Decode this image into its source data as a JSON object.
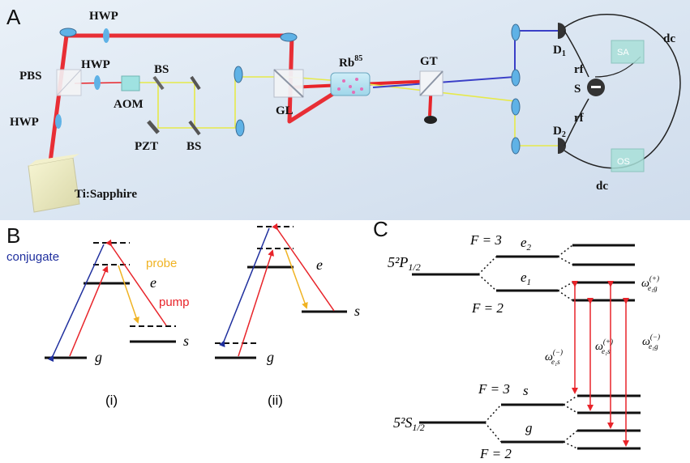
{
  "panel_a": {
    "letter": "A",
    "hwp1": "HWP",
    "hwp2": "HWP",
    "hwp3": "HWP",
    "pbs": "PBS",
    "aom": "AOM",
    "bs1": "BS",
    "bs2": "BS",
    "pzt": "PZT",
    "gl": "GL",
    "rb_main": "Rb",
    "rb_sup": "85",
    "gt": "GT",
    "laser": "Ti:Sapphire",
    "d1_main": "D",
    "d1_sub": "1",
    "d2_main": "D",
    "d2_sub": "2",
    "rf1": "rf",
    "rf2": "rf",
    "dc1": "dc",
    "dc2": "dc",
    "s": "S",
    "sa": "SA",
    "os": "OS"
  },
  "panel_b": {
    "letter": "B",
    "conjugate": "conjugate",
    "probe": "probe",
    "pump": "pump",
    "e1": "e",
    "s1": "s",
    "g1": "g",
    "e2": "e",
    "s2": "s",
    "g2": "g",
    "cap1": "(i)",
    "cap2": "(ii)"
  },
  "panel_c": {
    "letter": "C",
    "p_label": "5²P",
    "p_sub": "1/2",
    "s_label": "5²S",
    "s_sub": "1/2",
    "f3_top": "F = 3",
    "f2_top": "F = 2",
    "f3_bot": "F = 3",
    "f2_bot": "F = 2",
    "e2": "e",
    "e2_sub": "2",
    "e1": "e",
    "e1_sub": "1",
    "s": "s",
    "g": "g",
    "w1": "ω",
    "w1_sub": "e₁s",
    "w1_sup": "(−)",
    "w2": "ω",
    "w2_sub": "e₁s",
    "w2_sup": "(+)",
    "w3": "ω",
    "w3_sub": "e₁g",
    "w3_sup": "(−)",
    "w4": "ω",
    "w4_sub": "e₁g",
    "w4_sup": "(+)"
  },
  "colors": {
    "pump": "#e8242a",
    "conjugate": "#1f2f9e",
    "probe": "#f0b323",
    "beam_yellow": "#e6e94a",
    "beam_blue": "#3a3fc7"
  }
}
